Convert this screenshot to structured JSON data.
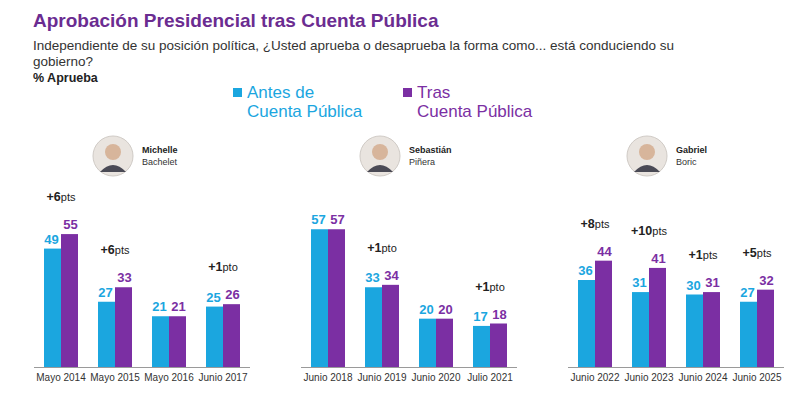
{
  "chart_data": {
    "type": "bar",
    "title": "Aprobación Presidencial tras Cuenta Pública",
    "subtitle": "Independiente de su posición política, ¿Usted aprueba o desaprueba la forma como... está conduciendo su\ngobierno?",
    "y_label": "% Aprueba",
    "categories": [
      "Mayo 2014",
      "Mayo 2015",
      "Mayo 2016",
      "Junio 2017",
      "Junio 2018",
      "Junio 2019",
      "Junio 2020",
      "Julio 2021",
      "Junio 2022",
      "Junio 2023",
      "Junio 2024",
      "Junio 2025"
    ],
    "series": [
      {
        "name": "Antes de\nCuenta Pública",
        "color": "#1ba6df",
        "values": [
          49,
          27,
          21,
          25,
          57,
          33,
          20,
          17,
          36,
          31,
          30,
          27
        ]
      },
      {
        "name": "Tras\nCuenta Pública",
        "color": "#7b2fa3",
        "values": [
          55,
          33,
          21,
          26,
          57,
          34,
          20,
          18,
          44,
          41,
          31,
          32
        ]
      }
    ],
    "annotations": [
      "+6pts",
      "+6pts",
      null,
      "+1pto",
      null,
      "+1pto",
      null,
      "+1pto",
      "+8pts",
      "+10pts",
      "+1pts",
      "+5pts"
    ],
    "groups": [
      {
        "first_name": "Michelle",
        "last_name": "Bachelet",
        "categories": [
          "Mayo 2014",
          "Mayo 2015",
          "Mayo 2016",
          "Junio 2017"
        ]
      },
      {
        "first_name": "Sebastián",
        "last_name": "Piñera",
        "categories": [
          "Junio 2018",
          "Junio 2019",
          "Junio 2020",
          "Julio 2021"
        ]
      },
      {
        "first_name": "Gabriel",
        "last_name": "Boric",
        "categories": [
          "Junio 2022",
          "Junio 2023",
          "Junio 2024",
          "Junio 2025"
        ]
      }
    ],
    "ylim": [
      0,
      60
    ],
    "tick_labels": "x",
    "data_labels": true,
    "legend": "top",
    "grid": false
  }
}
